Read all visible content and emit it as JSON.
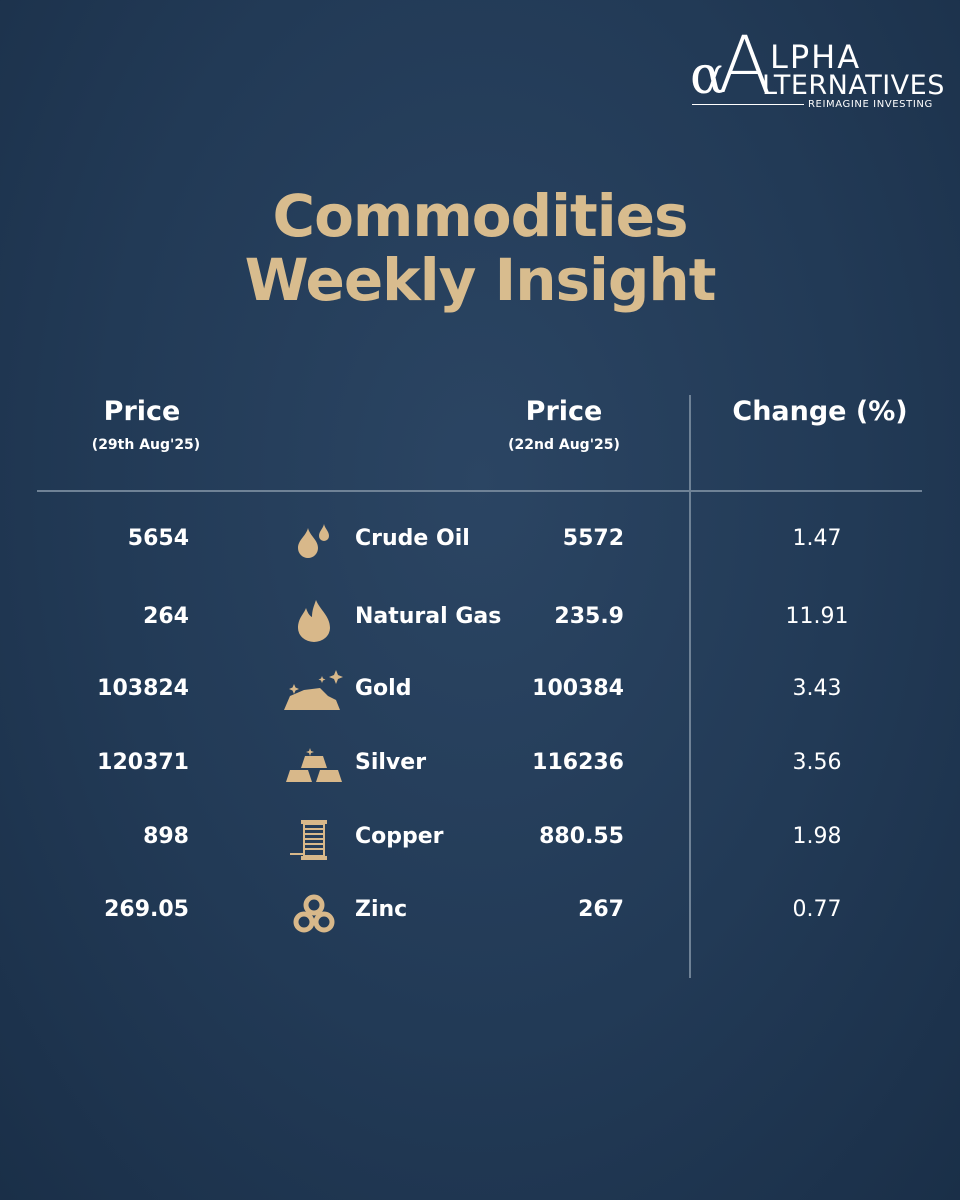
{
  "logo": {
    "alpha": "α",
    "initial": "A",
    "line1": "LPHA",
    "line2": "LTERNATIVES",
    "tagline": "REIMAGINE INVESTING"
  },
  "title": [
    "Commodities",
    "Weekly Insight"
  ],
  "table": {
    "headers": [
      {
        "label": "Price",
        "sub": "(29th Aug'25)"
      },
      {
        "label": "Price",
        "sub": "(22nd Aug'25)"
      },
      {
        "label": "Change (%)"
      }
    ],
    "rows": [
      [
        5654,
        "Crude Oil",
        5572,
        1.47
      ],
      [
        264,
        "Natural Gas",
        235.9,
        11.91
      ],
      [
        103824,
        "Gold",
        100384,
        3.43
      ],
      [
        120371,
        "Silver",
        116236,
        3.56
      ],
      [
        898,
        "Copper",
        880.55,
        1.98
      ],
      [
        269.05,
        "Zinc",
        267,
        0.77
      ]
    ]
  }
}
